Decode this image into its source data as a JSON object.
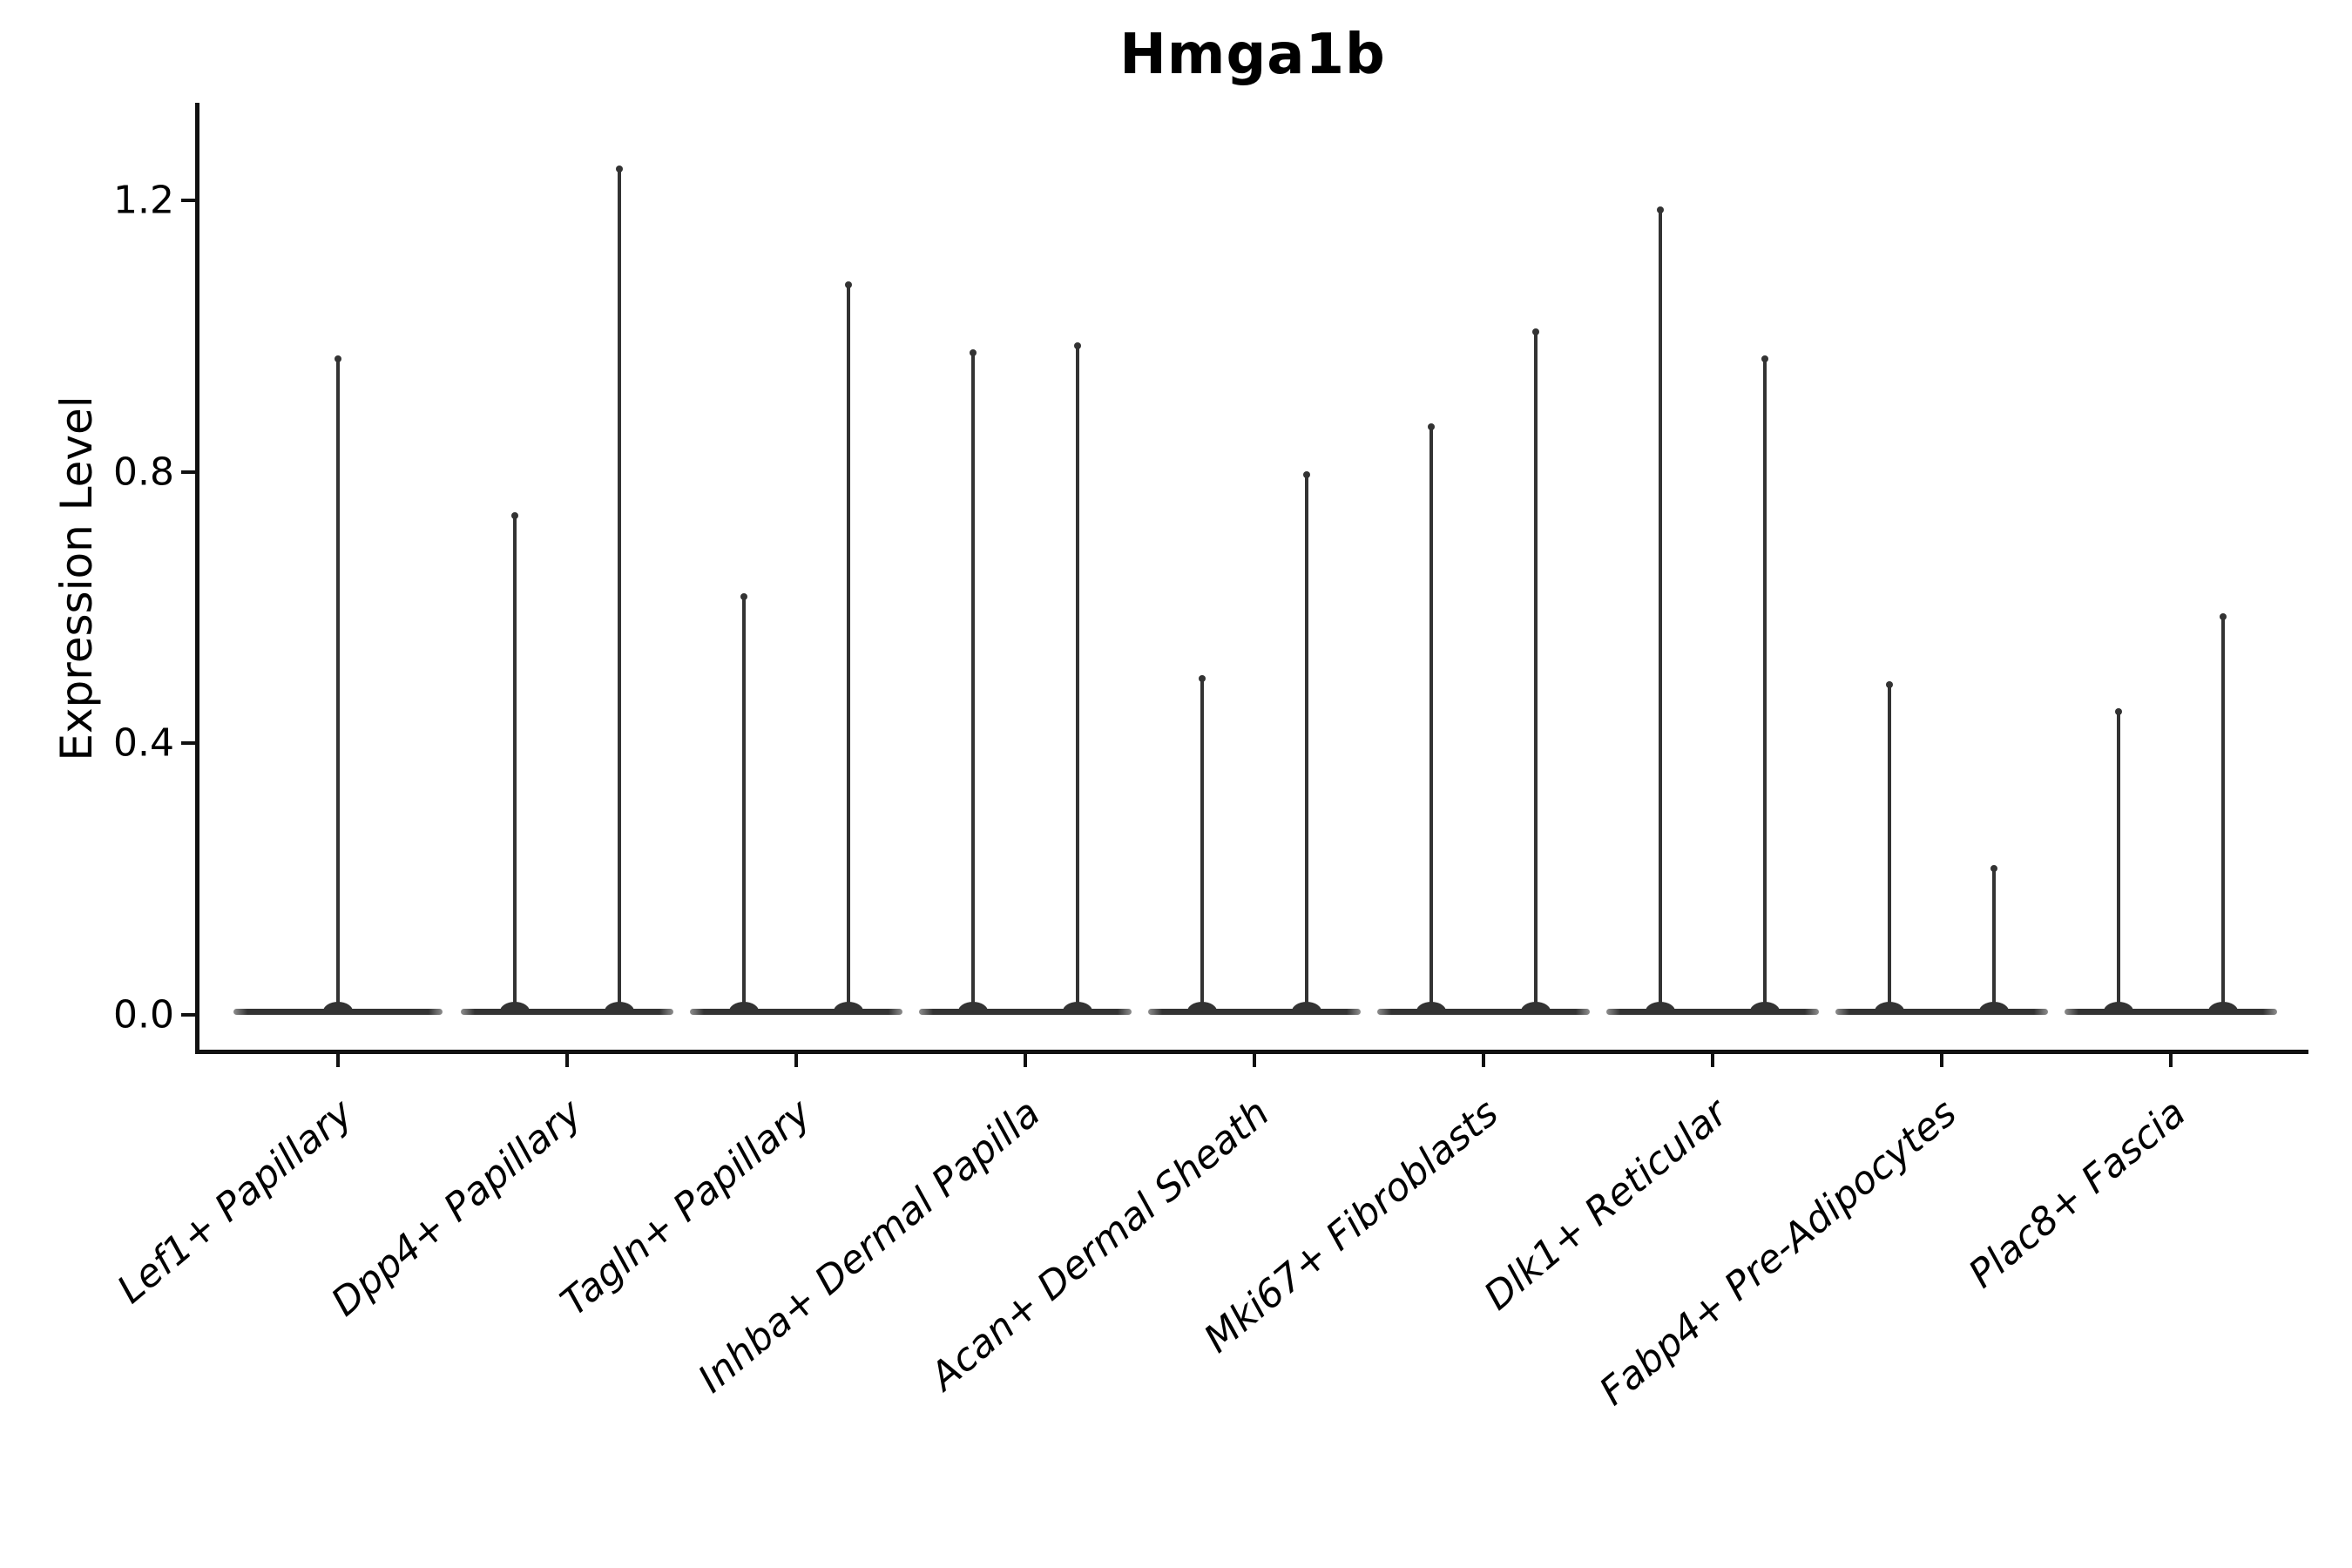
{
  "title": "Hmga1b",
  "chart_data": {
    "type": "violin",
    "title": "Hmga1b",
    "xlabel": "",
    "ylabel": "Expression Level",
    "categories": [
      "Lef1+ Papillary",
      "Dpp4+ Papillary",
      "Tagln+ Papillary",
      "Inhba+ Dermal Papilla",
      "Acan+ Dermal Sheath",
      "Mki67+ Fibroblasts",
      "Dlk1+ Reticular",
      "Fabp4+ Pre-Adipocytes",
      "Plac8+ Fascia"
    ],
    "series": [
      {
        "category": "Lef1+ Papillary",
        "violin_max_values": [
          0.97
        ]
      },
      {
        "category": "Dpp4+ Papillary",
        "violin_max_values": [
          0.74,
          1.25
        ]
      },
      {
        "category": "Tagln+ Papillary",
        "violin_max_values": [
          0.62,
          1.08
        ]
      },
      {
        "category": "Inhba+ Dermal Papilla",
        "violin_max_values": [
          0.98,
          0.99
        ]
      },
      {
        "category": "Acan+ Dermal Sheath",
        "violin_max_values": [
          0.5,
          0.8
        ]
      },
      {
        "category": "Mki67+ Fibroblasts",
        "violin_max_values": [
          0.87,
          1.01
        ]
      },
      {
        "category": "Dlk1+ Reticular",
        "violin_max_values": [
          1.19,
          0.97
        ]
      },
      {
        "category": "Fabp4+ Pre-Adipocytes",
        "violin_max_values": [
          0.49,
          0.22
        ]
      },
      {
        "category": "Plac8+ Fascia",
        "violin_max_values": [
          0.45,
          0.59
        ]
      }
    ],
    "density_peak_value": 0.0,
    "yticks": [
      0.0,
      0.4,
      0.8,
      1.2
    ],
    "ytick_labels": [
      "0.0",
      "0.4",
      "0.8",
      "1.2"
    ],
    "ylim": [
      -0.055,
      1.34
    ],
    "grid": false,
    "legend": null,
    "x_label_rotation_deg": 40,
    "colors": {
      "violin_line": "#333333",
      "spine": "#111111",
      "text": "#000000",
      "background": "#ffffff"
    }
  }
}
